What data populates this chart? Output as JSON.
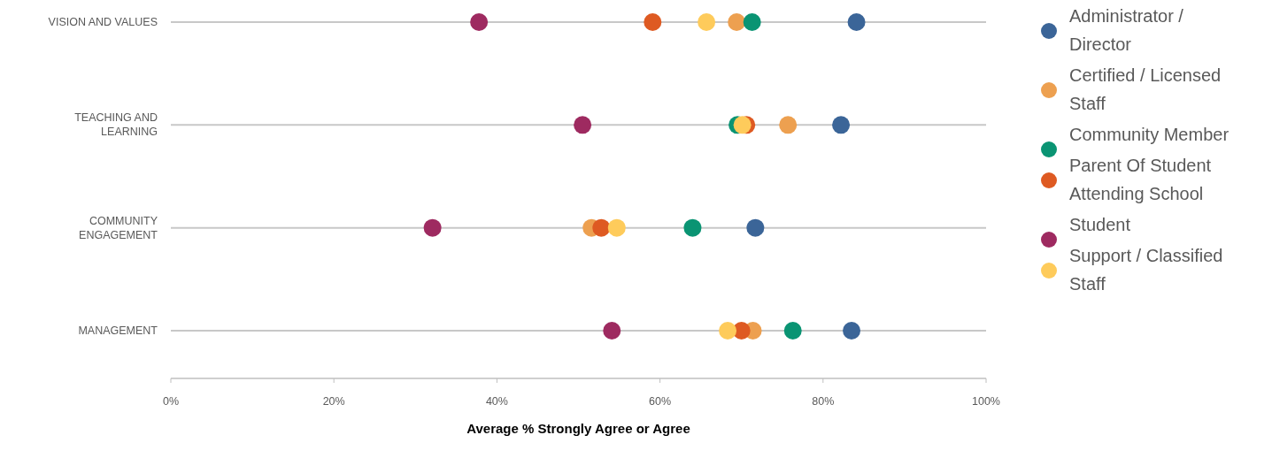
{
  "chart_data": {
    "type": "scatter",
    "orientation": "horizontal",
    "xlabel": "Average % Strongly Agree or Agree",
    "categories": [
      "VISION AND VALUES",
      "TEACHING AND LEARNING",
      "COMMUNITY ENGAGEMENT",
      "MANAGEMENT"
    ],
    "xlim": [
      0,
      100
    ],
    "xticks": [
      {
        "value": 0,
        "label": "0%"
      },
      {
        "value": 20,
        "label": "20%"
      },
      {
        "value": 40,
        "label": "40%"
      },
      {
        "value": 60,
        "label": "60%"
      },
      {
        "value": 80,
        "label": "80%"
      },
      {
        "value": 100,
        "label": "100%"
      }
    ],
    "grid": "y",
    "legend": "right",
    "marker": "circle",
    "series": [
      {
        "name": "Administrator / Director",
        "color": "#3b6598",
        "values": [
          84.1,
          82.2,
          71.7,
          83.5
        ]
      },
      {
        "name": "Certified / Licensed Staff",
        "color": "#eda050",
        "values": [
          69.4,
          75.7,
          51.6,
          71.4
        ]
      },
      {
        "name": "Community Member",
        "color": "#0a9473",
        "values": [
          71.3,
          69.5,
          64.0,
          76.3
        ]
      },
      {
        "name": "Parent Of Student Attending School",
        "color": "#de5a22",
        "values": [
          59.1,
          70.6,
          52.8,
          70.0
        ]
      },
      {
        "name": "Student",
        "color": "#9e2a60",
        "values": [
          37.8,
          50.5,
          32.1,
          54.1
        ]
      },
      {
        "name": "Support / Classified Staff",
        "color": "#fecb5b",
        "values": [
          65.7,
          70.1,
          54.7,
          68.3
        ]
      }
    ]
  }
}
